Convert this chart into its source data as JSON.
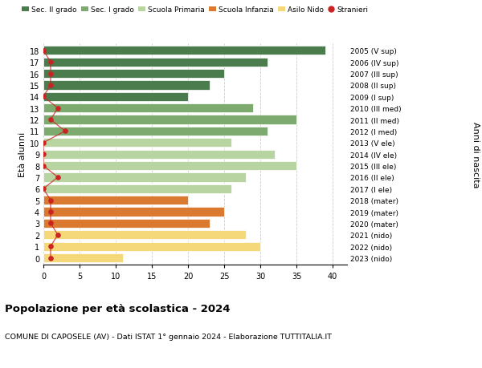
{
  "ages": [
    18,
    17,
    16,
    15,
    14,
    13,
    12,
    11,
    10,
    9,
    8,
    7,
    6,
    5,
    4,
    3,
    2,
    1,
    0
  ],
  "bar_values": [
    39,
    31,
    25,
    23,
    20,
    29,
    35,
    31,
    26,
    32,
    35,
    28,
    26,
    20,
    25,
    23,
    28,
    30,
    11
  ],
  "right_labels": [
    "2005 (V sup)",
    "2006 (IV sup)",
    "2007 (III sup)",
    "2008 (II sup)",
    "2009 (I sup)",
    "2010 (III med)",
    "2011 (II med)",
    "2012 (I med)",
    "2013 (V ele)",
    "2014 (IV ele)",
    "2015 (III ele)",
    "2016 (II ele)",
    "2017 (I ele)",
    "2018 (mater)",
    "2019 (mater)",
    "2020 (mater)",
    "2021 (nido)",
    "2022 (nido)",
    "2023 (nido)"
  ],
  "bar_colors": [
    "#4a7c4e",
    "#4a7c4e",
    "#4a7c4e",
    "#4a7c4e",
    "#4a7c4e",
    "#7daa6e",
    "#7daa6e",
    "#7daa6e",
    "#b8d4a0",
    "#b8d4a0",
    "#b8d4a0",
    "#b8d4a0",
    "#b8d4a0",
    "#d97a30",
    "#d97a30",
    "#d97a30",
    "#f5d87a",
    "#f5d87a",
    "#f5d87a"
  ],
  "stranieri_x": [
    0,
    1,
    1,
    1,
    0,
    2,
    1,
    3,
    0,
    0,
    0,
    2,
    0,
    1,
    1,
    1,
    2,
    1,
    1
  ],
  "legend_labels": [
    "Sec. II grado",
    "Sec. I grado",
    "Scuola Primaria",
    "Scuola Infanzia",
    "Asilo Nido",
    "Stranieri"
  ],
  "legend_colors": [
    "#4a7c4e",
    "#7daa6e",
    "#b8d4a0",
    "#d97a30",
    "#f5d87a",
    "#cc2222"
  ],
  "ylabel": "Età alunni",
  "ylabel_right": "Anni di nascita",
  "title": "Popolazione per età scolastica - 2024",
  "subtitle": "COMUNE DI CAPOSELE (AV) - Dati ISTAT 1° gennaio 2024 - Elaborazione TUTTITALIA.IT",
  "xlim": [
    0,
    42
  ],
  "xticks": [
    0,
    5,
    10,
    15,
    20,
    25,
    30,
    35,
    40
  ],
  "background_color": "#ffffff",
  "grid_color": "#cccccc",
  "bar_height": 0.78
}
